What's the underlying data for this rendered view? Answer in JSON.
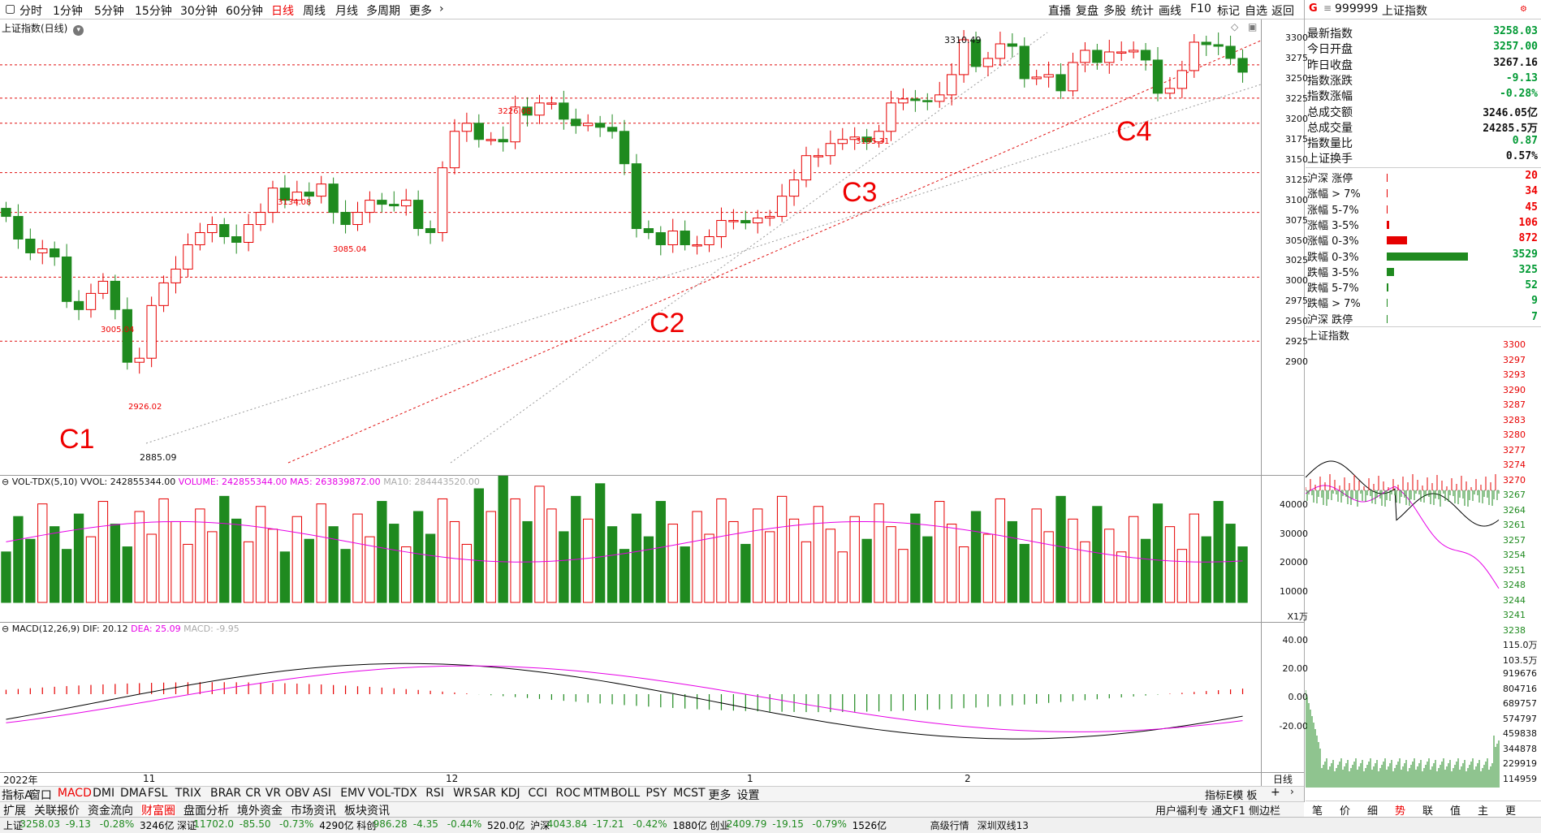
{
  "toolbar": {
    "periods": [
      "分时",
      "1分钟",
      "5分钟",
      "15分钟",
      "30分钟",
      "60分钟",
      "日线",
      "周线",
      "月线",
      "多周期",
      "更多"
    ],
    "active_period": "日线",
    "right_tools": [
      "直播",
      "复盘",
      "多股",
      "统计",
      "画线",
      "F10",
      "标记",
      "自选",
      "返回"
    ]
  },
  "chart_title": "上证指数(日线)",
  "price_chart": {
    "y_ticks": [
      "3300",
      "3275",
      "3250",
      "3225",
      "3200",
      "3175",
      "3150",
      "3125",
      "3100",
      "3075",
      "3050",
      "3025",
      "3000",
      "2975",
      "2950",
      "2925",
      "2900"
    ],
    "annotations": {
      "high": "3310.49",
      "a1": "3226.08",
      "a2": "3134.08",
      "a3": "3085.04",
      "a4": "3005.04",
      "a5": "2926.02",
      "low": "2885.09",
      "a6": "3195.31"
    },
    "labels": [
      "C1",
      "C2",
      "C3",
      "C4"
    ]
  },
  "vol_panel": {
    "title": "VOL-TDX(5,10)",
    "vvol": "VVOL: 242855344.00",
    "volume": "VOLUME: 242855344.00",
    "ma5": "MA5: 263839872.00",
    "ma10": "MA10: 284443520.00",
    "y_ticks": [
      "40000",
      "30000",
      "20000",
      "10000"
    ],
    "unit": "X1万"
  },
  "macd_panel": {
    "title": "MACD(12,26,9)",
    "dif": "DIF: 20.12",
    "dea": "DEA: 25.09",
    "macd": "MACD: -9.95",
    "y_ticks": [
      "40.00",
      "20.00",
      "0.00",
      "-20.00"
    ]
  },
  "date_axis": {
    "labels": [
      "2022年",
      "11",
      "12",
      "1",
      "2"
    ],
    "right": "日线"
  },
  "indicator_tabs": [
    "指标A",
    "窗口",
    "MACD",
    "DMI",
    "DMA",
    "FSL",
    "TRIX",
    "BRAR",
    "CR",
    "VR",
    "OBV",
    "ASI",
    "EMV",
    "VOL-TDX",
    "RSI",
    "WR",
    "SAR",
    "KDJ",
    "CCI",
    "ROC",
    "MTM",
    "BOLL",
    "PSY",
    "MCST",
    "更多",
    "设置"
  ],
  "indicator_tab_right": "指标E模 板",
  "bottom_tabs": [
    "扩展",
    "关联报价",
    "资金流向",
    "财富圈",
    "盘面分析",
    "境外资金",
    "市场资讯",
    "板块资讯"
  ],
  "active_bottom_tab": "财富圈",
  "right_panel": {
    "code": "999999",
    "name": "上证指数",
    "quotes": [
      {
        "label": "最新指数",
        "value": "3258.03",
        "color": "g"
      },
      {
        "label": "今日开盘",
        "value": "3257.00",
        "color": "g"
      },
      {
        "label": "昨日收盘",
        "value": "3267.16",
        "color": ""
      },
      {
        "label": "指数涨跌",
        "value": "-9.13",
        "color": "g"
      },
      {
        "label": "指数涨幅",
        "value": "-0.28%",
        "color": "g"
      },
      {
        "label": "总成交额",
        "value": "3246.05亿",
        "color": ""
      },
      {
        "label": "总成交量",
        "value": "24285.5万",
        "color": ""
      },
      {
        "label": "指数量比",
        "value": "0.87",
        "color": "g"
      },
      {
        "label": "上证换手",
        "value": "0.57%",
        "color": ""
      }
    ],
    "breadth": [
      {
        "label": "沪深 涨停",
        "value": "20",
        "color": "r",
        "share": 0.005
      },
      {
        "label": "涨幅 > 7%",
        "value": "34",
        "color": "r",
        "share": 0.01
      },
      {
        "label": "涨幅 5-7%",
        "value": "45",
        "color": "r",
        "share": 0.013
      },
      {
        "label": "涨幅 3-5%",
        "value": "106",
        "color": "r",
        "share": 0.03
      },
      {
        "label": "涨幅 0-3%",
        "value": "872",
        "color": "r",
        "share": 0.247
      },
      {
        "label": "跌幅 0-3%",
        "value": "3529",
        "color": "g",
        "share": 1.0
      },
      {
        "label": "跌幅 3-5%",
        "value": "325",
        "color": "g",
        "share": 0.092
      },
      {
        "label": "跌幅 5-7%",
        "value": "52",
        "color": "g",
        "share": 0.015
      },
      {
        "label": "跌幅 > 7%",
        "value": "9",
        "color": "g",
        "share": 0.003
      },
      {
        "label": "沪深 跌停",
        "value": "7",
        "color": "g",
        "share": 0.002
      }
    ],
    "mini_title": "上证指数",
    "mini_price_ticks": [
      "3300",
      "3297",
      "3293",
      "3290",
      "3287",
      "3283",
      "3280",
      "3277",
      "3274",
      "3270",
      "3267",
      "3264",
      "3261",
      "3257",
      "3254",
      "3251",
      "3248",
      "3244",
      "3241",
      "3238"
    ],
    "mini_vol_ticks": [
      "115.0万",
      "103.5万",
      "919676",
      "804716",
      "689757",
      "574797",
      "459838",
      "344878",
      "229919",
      "114959"
    ],
    "bottom_icons": [
      "笔",
      "价",
      "细",
      "势",
      "联",
      "值",
      "主",
      "更"
    ],
    "active_icon": "势"
  },
  "market_tabs": [
    "用户福利专",
    "通文F1",
    "侧边栏"
  ],
  "status_bar": {
    "items": [
      {
        "name": "上证",
        "price": "3258.03",
        "chg": "-9.13",
        "pct": "-0.28%",
        "amt": "3246亿"
      },
      {
        "name": "深证",
        "price": "11702.0",
        "chg": "-85.50",
        "pct": "-0.73%",
        "amt": "4290亿"
      },
      {
        "name": "科创",
        "price": "986.28",
        "chg": "-4.35",
        "pct": "-0.44%",
        "amt": "520.0亿"
      },
      {
        "name": "沪深",
        "price": "4043.84",
        "chg": "-17.21",
        "pct": "-0.42%",
        "amt": "1880亿"
      },
      {
        "name": "创业",
        "price": "2409.79",
        "chg": "-19.15",
        "pct": "-0.79%",
        "amt": "1526亿"
      }
    ],
    "extra": [
      "高级行情",
      "深圳双线13"
    ]
  },
  "colors": {
    "up": "#e60000",
    "down": "#1f8a1f",
    "ma5": "#e600e6",
    "grid": "#e01010"
  }
}
